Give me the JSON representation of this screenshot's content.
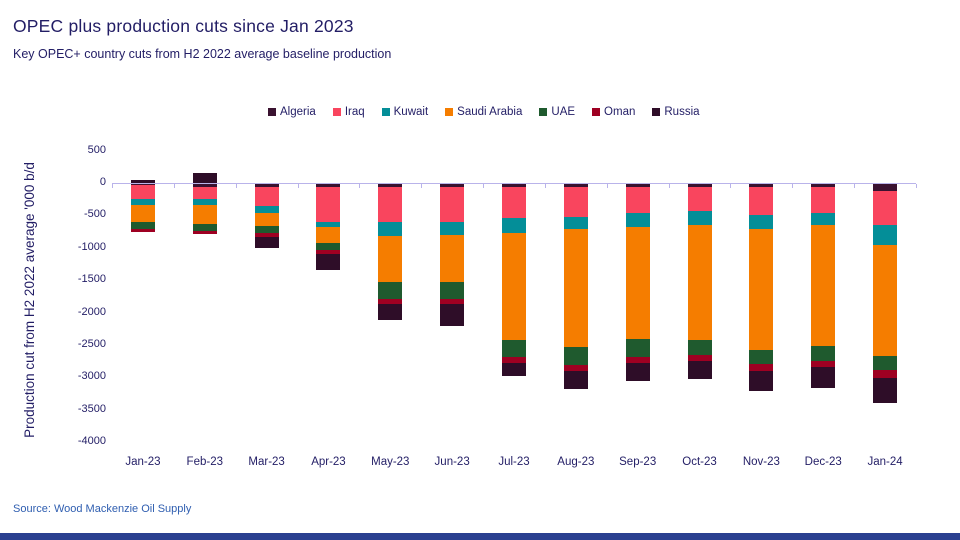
{
  "header": {
    "title": "OPEC plus production cuts since Jan 2023",
    "subtitle": "Key OPEC+ country cuts from  H2 2022  average baseline production"
  },
  "footer": {
    "source": "Source:  Wood Mackenzie Oil Supply"
  },
  "colors": {
    "title_text": "#221d65",
    "axis_text": "#221d65",
    "zero_line": "#b9b3ea",
    "source_text": "#2f5eb0",
    "footer_bar": "#2a4090",
    "background": "#ffffff"
  },
  "chart_data": {
    "type": "bar",
    "stacked": true,
    "title": "OPEC plus production cuts since Jan 2023",
    "subtitle": "Key OPEC+ country cuts from H2 2022 average baseline production",
    "xlabel": "",
    "ylabel": "Production cut from H2 2022 average '000 b/d",
    "legend_position": "top",
    "grid": "zero gridline only",
    "ylim": [
      -4000,
      500
    ],
    "yticks": [
      500,
      0,
      -500,
      -1000,
      -1500,
      -2000,
      -2500,
      -3000,
      -3500,
      -4000
    ],
    "categories": [
      "Jan-23",
      "Feb-23",
      "Mar-23",
      "Apr-23",
      "May-23",
      "Jun-23",
      "Jul-23",
      "Aug-23",
      "Sep-23",
      "Oct-23",
      "Nov-23",
      "Dec-23",
      "Jan-24"
    ],
    "series": [
      {
        "name": "Algeria",
        "color": "#3a1230",
        "values": [
          -20,
          -45,
          -45,
          -45,
          -50,
          -50,
          -45,
          -50,
          -45,
          -45,
          -45,
          -45,
          -105
        ]
      },
      {
        "name": "Iraq",
        "color": "#f9455e",
        "values": [
          -215,
          -185,
          -290,
          -535,
          -530,
          -530,
          -485,
          -455,
          -410,
          -365,
          -440,
          -410,
          -530
        ]
      },
      {
        "name": "Kuwait",
        "color": "#048e98",
        "values": [
          -90,
          -90,
          -105,
          -90,
          -230,
          -210,
          -230,
          -195,
          -210,
          -225,
          -210,
          -180,
          -305
        ]
      },
      {
        "name": "Saudi Arabia",
        "color": "#f57d00",
        "values": [
          -265,
          -295,
          -210,
          -245,
          -700,
          -715,
          -1650,
          -1820,
          -1725,
          -1770,
          -1865,
          -1865,
          -1710
        ]
      },
      {
        "name": "UAE",
        "color": "#1f5a2e",
        "values": [
          -110,
          -110,
          -110,
          -105,
          -260,
          -275,
          -260,
          -275,
          -275,
          -240,
          -225,
          -225,
          -225
        ]
      },
      {
        "name": "Oman",
        "color": "#9e0022",
        "values": [
          -45,
          -45,
          -60,
          -60,
          -75,
          -75,
          -90,
          -90,
          -90,
          -90,
          -105,
          -105,
          -120
        ]
      },
      {
        "name": "Russia",
        "color": "#2e0d28",
        "values": [
          45,
          155,
          -170,
          -245,
          -260,
          -335,
          -210,
          -275,
          -290,
          -275,
          -305,
          -320,
          -380
        ]
      }
    ]
  }
}
